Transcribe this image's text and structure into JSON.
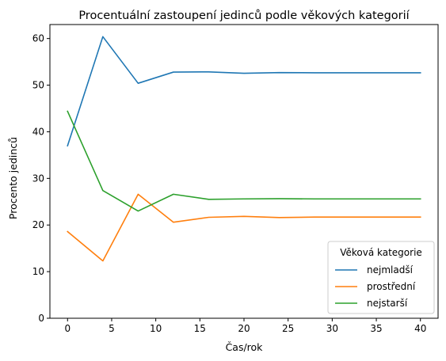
{
  "chart_data": {
    "type": "line",
    "title": "Procentuální zastoupení jedinců podle věkových kategorií",
    "xlabel": "Čas/rok",
    "ylabel": "Procento jedinců",
    "xlim": [
      -2,
      42
    ],
    "ylim": [
      0,
      63
    ],
    "xticks": [
      0,
      5,
      10,
      15,
      20,
      25,
      30,
      35,
      40
    ],
    "yticks": [
      0,
      10,
      20,
      30,
      40,
      50,
      60
    ],
    "grid": false,
    "legend": {
      "title": "Věková kategorie",
      "placement": "lower-right"
    },
    "x": [
      0,
      4,
      8,
      12,
      16,
      20,
      24,
      28,
      32,
      36,
      40
    ],
    "series": [
      {
        "name": "nejmladší",
        "color": "#1f77b4",
        "values": [
          37.0,
          60.4,
          50.4,
          52.8,
          52.85,
          52.55,
          52.7,
          52.65,
          52.65,
          52.65,
          52.65
        ]
      },
      {
        "name": "prostřední",
        "color": "#ff7f0e",
        "values": [
          18.6,
          12.3,
          26.6,
          20.6,
          21.65,
          21.85,
          21.6,
          21.7,
          21.7,
          21.7,
          21.7
        ]
      },
      {
        "name": "nejstarší",
        "color": "#2ca02c",
        "values": [
          44.4,
          27.4,
          23.0,
          26.6,
          25.5,
          25.6,
          25.65,
          25.6,
          25.6,
          25.6,
          25.6
        ]
      }
    ]
  }
}
